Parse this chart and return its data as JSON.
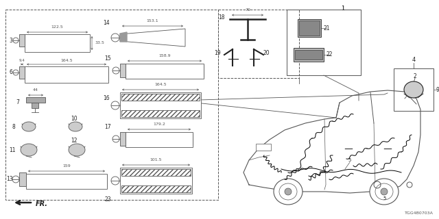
{
  "bg_color": "#ffffff",
  "diagram_code": "TGG4B0703A",
  "gray": "#555555",
  "dark": "#222222",
  "fig_w": 6.4,
  "fig_h": 3.2,
  "dpi": 100
}
